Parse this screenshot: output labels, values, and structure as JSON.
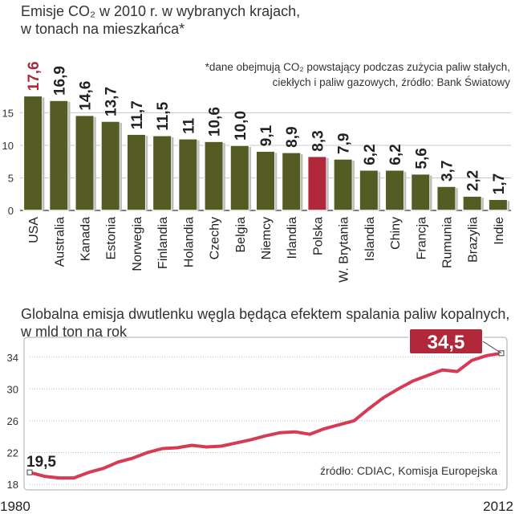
{
  "chart_data": [
    {
      "type": "bar",
      "title": "Emisje CO₂ w 2010 r. w wybranych krajach,",
      "subtitle": "w tonach na mieszkańca*",
      "note_line1": "*dane obejmują CO₂ powstający podczas zużycia paliw stałych,",
      "note_line2": "ciekłych i paliw gazowych, źródło: Bank Światowy",
      "categories": [
        "USA",
        "Australia",
        "Kanada",
        "Estonia",
        "Norwegia",
        "Finlandia",
        "Holandia",
        "Czechy",
        "Belgia",
        "Niemcy",
        "Irlandia",
        "Polska",
        "W. Brytania",
        "Islandia",
        "Chiny",
        "Francja",
        "Rumunia",
        "Brazylia",
        "Indie"
      ],
      "values": [
        17.6,
        16.9,
        14.6,
        13.7,
        11.7,
        11.5,
        11,
        10.6,
        10.0,
        9.1,
        8.9,
        8.3,
        7.9,
        6.2,
        6.2,
        5.6,
        3.7,
        2.2,
        1.7
      ],
      "value_labels": [
        "17,6",
        "16,9",
        "14,6",
        "13,7",
        "11,7",
        "11,5",
        "11",
        "10,6",
        "10,0",
        "9,1",
        "8,9",
        "8,3",
        "7,9",
        "6,2",
        "6,2",
        "5,6",
        "3,7",
        "2,2",
        "1,7"
      ],
      "highlight": [
        "USA",
        "Polska"
      ],
      "y_ticks": [
        0,
        5,
        10,
        15
      ],
      "y_tick_labels": [
        "0",
        "5",
        "10",
        "15"
      ],
      "ylim": [
        0,
        19
      ],
      "colors": {
        "bar": "#545b23",
        "highlight": "#b0283a",
        "label_highlight": "#b0283a",
        "label": "#222222"
      }
    },
    {
      "type": "line",
      "title": "Globalna emisja dwutlenku węgla będąca efektem spalania paliw kopalnych,",
      "subtitle": "w mld ton na rok",
      "x": [
        1980,
        1981,
        1982,
        1983,
        1984,
        1985,
        1986,
        1987,
        1988,
        1989,
        1990,
        1991,
        1992,
        1993,
        1994,
        1995,
        1996,
        1997,
        1998,
        1999,
        2000,
        2001,
        2002,
        2003,
        2004,
        2005,
        2006,
        2007,
        2008,
        2009,
        2010,
        2011,
        2012
      ],
      "y": [
        19.5,
        19.0,
        18.8,
        18.8,
        19.5,
        20.0,
        20.8,
        21.3,
        22.0,
        22.5,
        22.6,
        22.9,
        22.7,
        22.8,
        23.2,
        23.6,
        24.1,
        24.5,
        24.6,
        24.3,
        25.0,
        25.5,
        26.0,
        27.5,
        28.9,
        30.0,
        31.0,
        31.7,
        32.4,
        32.2,
        33.6,
        34.2,
        34.5
      ],
      "x_tick_labels": [
        "1980",
        "2012"
      ],
      "y_ticks": [
        18,
        22,
        26,
        30,
        34
      ],
      "y_tick_labels": [
        "18",
        "22",
        "26",
        "30",
        "34"
      ],
      "ylim": [
        18,
        36
      ],
      "start_label": "19,5",
      "end_label": "34,5",
      "source": "źródło: CDIAC, Komisja Europejska",
      "colors": {
        "line": "#d63a55",
        "callout": "#b0283a",
        "grid": "#bbbbbb"
      }
    }
  ]
}
